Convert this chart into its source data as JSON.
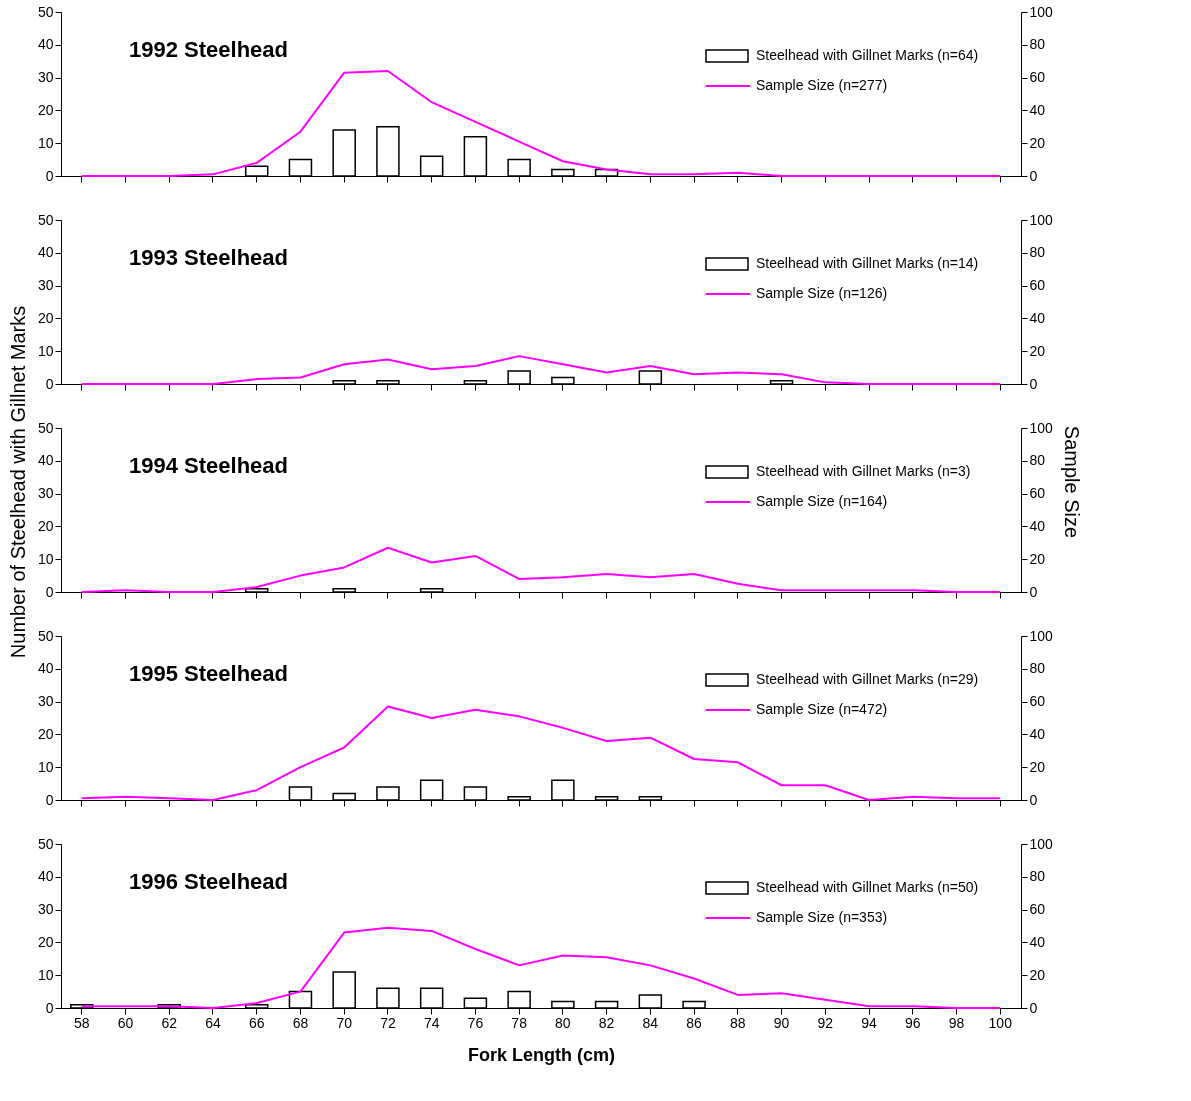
{
  "chart_data": [
    {
      "type": "bar",
      "title": "1992 Steelhead",
      "legend": "top right",
      "tick_labels": "y",
      "grid": false,
      "marker": "none",
      "line_style": "solid",
      "categories": [
        "58",
        "60",
        "62",
        "64",
        "66",
        "68",
        "70",
        "72",
        "74",
        "76",
        "78",
        "80",
        "82",
        "84",
        "86",
        "88",
        "90",
        "92",
        "94",
        "96",
        "98",
        "100"
      ],
      "ylim": [
        0,
        50
      ],
      "yticks": [
        0,
        10,
        20,
        30,
        40,
        50
      ],
      "y2lim": [
        0,
        100
      ],
      "y2ticks": [
        0,
        20,
        40,
        60,
        80,
        100
      ],
      "series": [
        {
          "name": "Steelhead with Gillnet Marks  (n=64)",
          "type": "bar",
          "color": "#ffffff",
          "values": [
            0,
            0,
            0,
            0,
            3,
            5,
            14,
            15,
            6,
            12,
            5,
            2,
            2,
            0,
            0,
            0,
            0,
            0,
            0,
            0,
            0,
            0
          ]
        },
        {
          "name": "Sample Size  (n=277)",
          "type": "line",
          "axis": "y2",
          "color": "#ff00ff",
          "values": [
            0,
            0,
            0,
            1,
            8,
            27,
            63,
            64,
            45,
            33,
            21,
            9,
            4,
            1,
            1,
            2,
            0,
            0,
            0,
            0,
            0,
            0
          ]
        }
      ]
    },
    {
      "type": "bar",
      "title": "1993 Steelhead",
      "legend": "top right",
      "tick_labels": "y",
      "grid": false,
      "marker": "none",
      "line_style": "solid",
      "categories": [
        "58",
        "60",
        "62",
        "64",
        "66",
        "68",
        "70",
        "72",
        "74",
        "76",
        "78",
        "80",
        "82",
        "84",
        "86",
        "88",
        "90",
        "92",
        "94",
        "96",
        "98",
        "100"
      ],
      "ylim": [
        0,
        50
      ],
      "yticks": [
        0,
        10,
        20,
        30,
        40,
        50
      ],
      "y2lim": [
        0,
        100
      ],
      "y2ticks": [
        0,
        20,
        40,
        60,
        80,
        100
      ],
      "series": [
        {
          "name": "Steelhead with Gillnet Marks  (n=14)",
          "type": "bar",
          "color": "#ffffff",
          "values": [
            0,
            0,
            0,
            0,
            0,
            0,
            1,
            1,
            0,
            1,
            4,
            2,
            0,
            4,
            0,
            0,
            1,
            0,
            0,
            0,
            0,
            0
          ]
        },
        {
          "name": "Sample Size  (n=126)",
          "type": "line",
          "axis": "y2",
          "color": "#ff00ff",
          "values": [
            0,
            0,
            0,
            0,
            3,
            4,
            12,
            15,
            9,
            11,
            17,
            12,
            7,
            11,
            6,
            7,
            6,
            1,
            0,
            0,
            0,
            0
          ]
        }
      ]
    },
    {
      "type": "bar",
      "title": "1994 Steelhead",
      "legend": "top right",
      "tick_labels": "y",
      "grid": false,
      "marker": "none",
      "line_style": "solid",
      "ylabel": "Number of Steelhead with Gillnet Marks",
      "y2label": "Sample Size",
      "categories": [
        "58",
        "60",
        "62",
        "64",
        "66",
        "68",
        "70",
        "72",
        "74",
        "76",
        "78",
        "80",
        "82",
        "84",
        "86",
        "88",
        "90",
        "92",
        "94",
        "96",
        "98",
        "100"
      ],
      "ylim": [
        0,
        50
      ],
      "yticks": [
        0,
        10,
        20,
        30,
        40,
        50
      ],
      "y2lim": [
        0,
        100
      ],
      "y2ticks": [
        0,
        20,
        40,
        60,
        80,
        100
      ],
      "series": [
        {
          "name": "Steelhead with Gillnet Marks  (n=3)",
          "type": "bar",
          "color": "#ffffff",
          "values": [
            0,
            0,
            0,
            0,
            1,
            0,
            1,
            0,
            1,
            0,
            0,
            0,
            0,
            0,
            0,
            0,
            0,
            0,
            0,
            0,
            0,
            0
          ]
        },
        {
          "name": "Sample Size  (n=164)",
          "type": "line",
          "axis": "y2",
          "color": "#ff00ff",
          "values": [
            0,
            1,
            0,
            0,
            3,
            10,
            15,
            27,
            18,
            22,
            8,
            9,
            11,
            9,
            11,
            5,
            1,
            1,
            1,
            1,
            0,
            0
          ]
        }
      ]
    },
    {
      "type": "bar",
      "title": "1995 Steelhead",
      "legend": "top right",
      "tick_labels": "y",
      "grid": false,
      "marker": "none",
      "line_style": "solid",
      "categories": [
        "58",
        "60",
        "62",
        "64",
        "66",
        "68",
        "70",
        "72",
        "74",
        "76",
        "78",
        "80",
        "82",
        "84",
        "86",
        "88",
        "90",
        "92",
        "94",
        "96",
        "98",
        "100"
      ],
      "ylim": [
        0,
        50
      ],
      "yticks": [
        0,
        10,
        20,
        30,
        40,
        50
      ],
      "y2lim": [
        0,
        100
      ],
      "y2ticks": [
        0,
        20,
        40,
        60,
        80,
        100
      ],
      "series": [
        {
          "name": "Steelhead with Gillnet Marks  (n=29)",
          "type": "bar",
          "color": "#ffffff",
          "values": [
            0,
            0,
            0,
            0,
            0,
            4,
            2,
            4,
            6,
            4,
            1,
            6,
            1,
            1,
            0,
            0,
            0,
            0,
            0,
            0,
            0,
            0
          ]
        },
        {
          "name": "Sample Size  (n=472)",
          "type": "line",
          "axis": "y2",
          "color": "#ff00ff",
          "values": [
            1,
            2,
            1,
            0,
            6,
            20,
            32,
            57,
            50,
            55,
            51,
            44,
            36,
            38,
            25,
            23,
            9,
            9,
            0,
            2,
            1,
            1
          ]
        }
      ]
    },
    {
      "type": "bar",
      "title": "1996 Steelhead",
      "legend": "top right",
      "grid": false,
      "marker": "none",
      "line_style": "solid",
      "xlabel": "Fork Length (cm)",
      "categories": [
        "58",
        "60",
        "62",
        "64",
        "66",
        "68",
        "70",
        "72",
        "74",
        "76",
        "78",
        "80",
        "82",
        "84",
        "86",
        "88",
        "90",
        "92",
        "94",
        "96",
        "98",
        "100"
      ],
      "ylim": [
        0,
        50
      ],
      "yticks": [
        0,
        10,
        20,
        30,
        40,
        50
      ],
      "y2lim": [
        0,
        100
      ],
      "y2ticks": [
        0,
        20,
        40,
        60,
        80,
        100
      ],
      "series": [
        {
          "name": "Steelhead with Gillnet Marks  (n=50)",
          "type": "bar",
          "color": "#ffffff",
          "values": [
            1,
            0,
            1,
            0,
            1,
            5,
            11,
            6,
            6,
            3,
            5,
            2,
            2,
            4,
            2,
            0,
            0,
            0,
            0,
            0,
            0,
            0
          ]
        },
        {
          "name": "Sample Size  (n=353)",
          "type": "line",
          "axis": "y2",
          "color": "#ff00ff",
          "values": [
            1,
            1,
            1,
            0,
            3,
            10,
            46,
            49,
            47,
            36,
            26,
            32,
            31,
            26,
            18,
            8,
            9,
            5,
            1,
            1,
            0,
            0
          ]
        }
      ]
    }
  ]
}
